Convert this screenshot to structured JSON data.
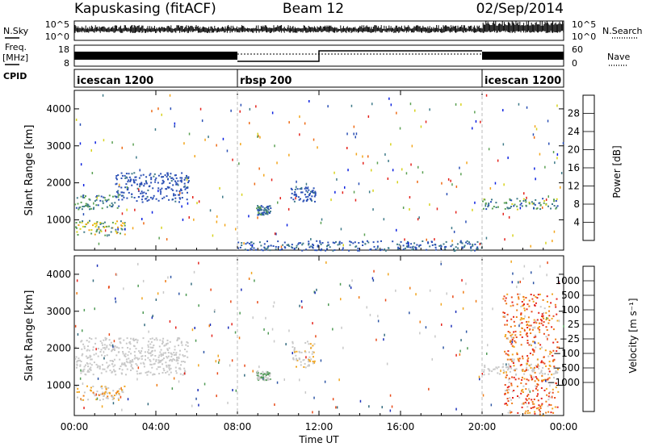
{
  "header": {
    "radar": "Kapuskasing (fitACF)",
    "beam": "Beam 12",
    "date": "02/Sep/2014"
  },
  "summary": {
    "nsky_label": "N.Sky",
    "nsearch_label": "N.Search",
    "freq_label": "Freq.",
    "freq_unit": "[MHz]",
    "nave_label": "Nave",
    "cpid_label": "CPID",
    "nsky_ticks": [
      "10^5",
      "10^0"
    ],
    "nsearch_ticks": [
      "10^5",
      "10^0"
    ],
    "freq_ticks": [
      "18",
      "8"
    ],
    "nave_ticks": [
      "60",
      "0"
    ],
    "cpid_segments": [
      {
        "label": "icescan 1200",
        "start_hour": 0,
        "end_hour": 8
      },
      {
        "label": "rbsp 200",
        "start_hour": 8,
        "end_hour": 20
      },
      {
        "label": "icescan 1200",
        "start_hour": 20,
        "end_hour": 24
      }
    ]
  },
  "xaxis": {
    "label": "Time UT",
    "ticks": [
      "00:00",
      "04:00",
      "08:00",
      "12:00",
      "16:00",
      "20:00",
      "00:00"
    ]
  },
  "power_panel": {
    "ylabel": "Slant Range [km]",
    "yticks": [
      "1000",
      "2000",
      "3000",
      "4000"
    ],
    "cbar_label": "Power [dB]",
    "cbar_ticks": [
      "4",
      "8",
      "12",
      "16",
      "20",
      "24",
      "28"
    ],
    "cbar_colors": [
      "#0b20e0",
      "#2a4fb5",
      "#3e7a88",
      "#5aa052",
      "#d7d21c",
      "#f3a51a",
      "#ee6a14",
      "#e4221b"
    ]
  },
  "velocity_panel": {
    "ylabel": "Slant Range [km]",
    "yticks": [
      "1000",
      "2000",
      "3000",
      "4000"
    ],
    "cbar_label": "Velocity [m s⁻¹]",
    "cbar_ticks": [
      "1000",
      "500",
      "100",
      "25",
      "−25",
      "−100",
      "−500",
      "−1000"
    ],
    "cbar_colors": [
      "#1b2fb8",
      "#2e56a5",
      "#356c7f",
      "#4e9a54",
      "#c8c8c8",
      "#c8c8c8",
      "#f1a51e",
      "#ef7b14",
      "#e84a18",
      "#e4221b"
    ]
  },
  "chart_data": [
    {
      "type": "heatmap",
      "title": "Power",
      "xlabel": "Time UT",
      "ylabel": "Slant Range [km]",
      "xlim": [
        0,
        24
      ],
      "ylim": [
        180,
        4500
      ],
      "colorbar": {
        "label": "Power [dB]",
        "range": [
          0,
          30
        ]
      },
      "scatter_regions": [
        {
          "hours": [
            0,
            2.5
          ],
          "range_km": [
            600,
            1000
          ],
          "power_db": [
            8,
            22
          ]
        },
        {
          "hours": [
            0,
            2.2
          ],
          "range_km": [
            1300,
            1700
          ],
          "power_db": [
            6,
            14
          ]
        },
        {
          "hours": [
            2.0,
            5.6
          ],
          "range_km": [
            1500,
            2300
          ],
          "power_db": [
            4,
            8
          ]
        },
        {
          "hours": [
            8.9,
            9.6
          ],
          "range_km": [
            1150,
            1400
          ],
          "power_db": [
            4,
            14
          ]
        },
        {
          "hours": [
            10.6,
            11.8
          ],
          "range_km": [
            1500,
            1900
          ],
          "power_db": [
            4,
            8
          ]
        },
        {
          "hours": [
            20.0,
            23.7
          ],
          "range_km": [
            1300,
            1600
          ],
          "power_db": [
            6,
            16
          ]
        },
        {
          "hours": [
            8.0,
            20.0
          ],
          "range_km": [
            180,
            450
          ],
          "power_db": [
            4,
            10
          ]
        }
      ]
    },
    {
      "type": "heatmap",
      "title": "Velocity",
      "xlabel": "Time UT",
      "ylabel": "Slant Range [km]",
      "xlim": [
        0,
        24
      ],
      "ylim": [
        180,
        4500
      ],
      "colorbar": {
        "label": "Velocity [m s⁻¹]",
        "range": [
          -1000,
          1000
        ]
      },
      "scatter_regions": [
        {
          "hours": [
            0,
            2.5
          ],
          "range_km": [
            600,
            1000
          ],
          "velocity_ms": [
            -500,
            100
          ]
        },
        {
          "hours": [
            0,
            5.6
          ],
          "range_km": [
            1300,
            2300
          ],
          "velocity_ms": [
            -25,
            25
          ]
        },
        {
          "hours": [
            8.9,
            9.6
          ],
          "range_km": [
            1150,
            1400
          ],
          "velocity_ms": [
            25,
            300
          ]
        },
        {
          "hours": [
            10.6,
            11.8
          ],
          "range_km": [
            1500,
            2200
          ],
          "velocity_ms": [
            -300,
            25
          ]
        },
        {
          "hours": [
            20.0,
            23.7
          ],
          "range_km": [
            1300,
            1600
          ],
          "velocity_ms": [
            -25,
            25
          ]
        },
        {
          "hours": [
            21.0,
            23.7
          ],
          "range_km": [
            200,
            3500
          ],
          "velocity_ms": [
            -1000,
            -100
          ]
        }
      ]
    }
  ]
}
